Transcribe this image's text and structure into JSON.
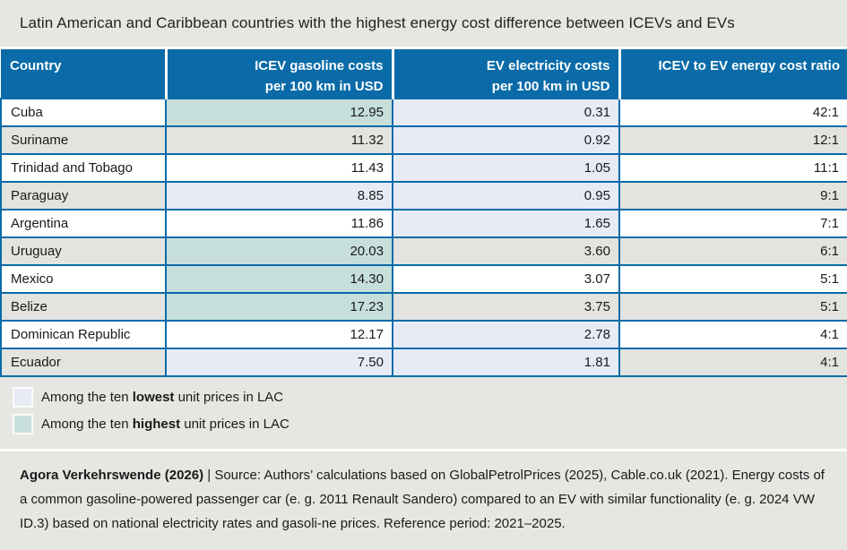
{
  "title": "Latin American and Caribbean countries with the highest energy cost difference between ICEVs and EVs",
  "colors": {
    "header_blue": "#0a6ba8",
    "border_blue": "#0a6ba8",
    "band_bg": "#e6e6e2",
    "row_alt": "#e3e3df",
    "highlight_lowest": "#e7ebf6",
    "highlight_highest": "#c6dfdb",
    "text_color": "#1a1a1a"
  },
  "table_headers": {
    "country": "Country",
    "icev_line1": "ICEV gasoline costs",
    "icev_line2": "per 100 km in USD",
    "ev_line1": "EV electricity costs",
    "ev_line2": "per 100 km in USD",
    "ratio": "ICEV to EV energy cost ratio"
  },
  "chart_data": {
    "type": "table",
    "title": "Latin American and Caribbean countries with the highest energy cost difference between ICEVs and EVs",
    "columns": [
      "Country",
      "ICEV gasoline costs per 100 km in USD",
      "EV electricity costs per 100 km in USD",
      "ICEV to EV energy cost ratio"
    ],
    "rows": [
      {
        "country": "Cuba",
        "icev_cost": 12.95,
        "ev_cost": 0.31,
        "ratio": "42:1",
        "icev_highlight": "highest",
        "ev_highlight": "lowest"
      },
      {
        "country": "Suriname",
        "icev_cost": 11.32,
        "ev_cost": 0.92,
        "ratio": "12:1",
        "icev_highlight": null,
        "ev_highlight": "lowest"
      },
      {
        "country": "Trinidad and Tobago",
        "icev_cost": 11.43,
        "ev_cost": 1.05,
        "ratio": "11:1",
        "icev_highlight": null,
        "ev_highlight": "lowest"
      },
      {
        "country": "Paraguay",
        "icev_cost": 8.85,
        "ev_cost": 0.95,
        "ratio": "9:1",
        "icev_highlight": "lowest",
        "ev_highlight": "lowest"
      },
      {
        "country": "Argentina",
        "icev_cost": 11.86,
        "ev_cost": 1.65,
        "ratio": "7:1",
        "icev_highlight": null,
        "ev_highlight": "lowest"
      },
      {
        "country": "Uruguay",
        "icev_cost": 20.03,
        "ev_cost": 3.6,
        "ratio": "6:1",
        "icev_highlight": "highest",
        "ev_highlight": null
      },
      {
        "country": "Mexico",
        "icev_cost": 14.3,
        "ev_cost": 3.07,
        "ratio": "5:1",
        "icev_highlight": "highest",
        "ev_highlight": null
      },
      {
        "country": "Belize",
        "icev_cost": 17.23,
        "ev_cost": 3.75,
        "ratio": "5:1",
        "icev_highlight": "highest",
        "ev_highlight": null
      },
      {
        "country": "Dominican Republic",
        "icev_cost": 12.17,
        "ev_cost": 2.78,
        "ratio": "4:1",
        "icev_highlight": null,
        "ev_highlight": "lowest"
      },
      {
        "country": "Ecuador",
        "icev_cost": 7.5,
        "ev_cost": 1.81,
        "ratio": "4:1",
        "icev_highlight": "lowest",
        "ev_highlight": "lowest"
      }
    ],
    "legend_position": "below-table"
  },
  "legend": [
    {
      "prefix": "Among the ten ",
      "bold": "lowest",
      "suffix": " unit prices in LAC",
      "swatch_color": "#e7ebf6"
    },
    {
      "prefix": "Among the ten ",
      "bold": "highest",
      "suffix": " unit prices in LAC",
      "swatch_color": "#c6dfdb"
    }
  ],
  "footer": {
    "bold": "Agora Verkehrswende (2026)",
    "rest": " | Source: Authors’ calculations based on GlobalPetrolPrices (2025), Cable.co.uk (2021). Energy costs of a common gasoline-powered passenger car (e. g. 2011 Renault Sandero) compared to an EV with similar functionality (e. g. 2024 VW ID.3) based on national electricity rates and gasoli-ne prices. Reference period: 2021–2025."
  }
}
